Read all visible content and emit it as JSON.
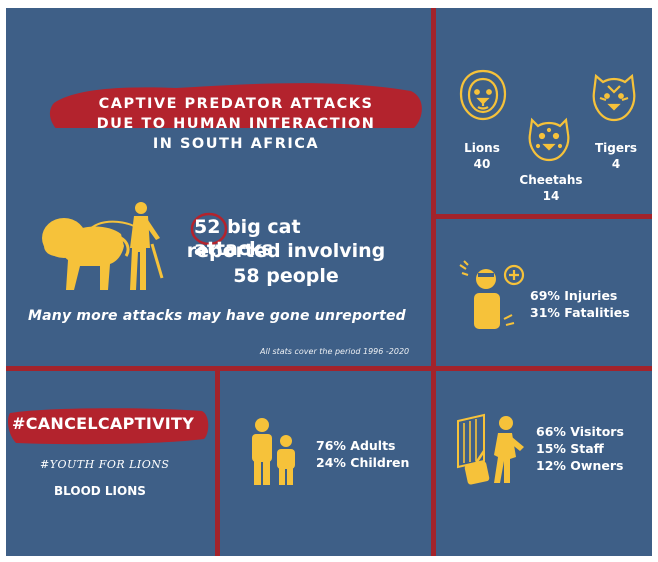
{
  "headline": {
    "line1": "CAPTIVE PREDATOR ATTACKS",
    "line2": "DUE TO HUMAN INTERACTION",
    "line3": "IN SOUTH AFRICA"
  },
  "attacks": {
    "count": "52",
    "line1_rest": "big cat attacks",
    "line2": "reported involving",
    "line3": "58 people"
  },
  "unreported_note": "Many more attacks may have gone unreported",
  "period_note": "All stats cover the period 1996 -2020",
  "species": [
    {
      "name": "Lions",
      "count": "40",
      "icon": "lion-icon"
    },
    {
      "name": "Cheetahs",
      "count": "14",
      "icon": "cheetah-icon"
    },
    {
      "name": "Tigers",
      "count": "4",
      "icon": "tiger-icon"
    }
  ],
  "outcomes": {
    "injuries": "69% Injuries",
    "fatalities": "31% Fatalities",
    "icon": "injured-person-icon"
  },
  "ages": {
    "adults": "76% Adults",
    "children": "24% Children",
    "icon": "adult-child-icon"
  },
  "roles": {
    "visitors": "66% Visitors",
    "staff": "15% Staff",
    "owners": "12% Owners",
    "icon": "visitor-luggage-icon"
  },
  "branding": {
    "hashtag": "#CANCELCAPTIVITY",
    "youth": "#YOUTH FOR LIONS",
    "org": "BLOOD LIONS"
  },
  "colors": {
    "background": "#3e5f87",
    "divider": "#a3232b",
    "accent_yellow": "#f6c23a",
    "brush_red": "#b3232d"
  }
}
